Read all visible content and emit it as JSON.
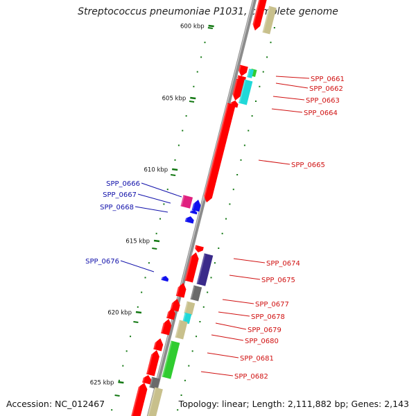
{
  "title": "Streptococcus pneumoniae P1031, complete genome",
  "accession_label": "Accession: NC_012467",
  "summary_label": "Topology: linear; Length: 2,111,882 bp; Genes: 2,143",
  "colors": {
    "backbone": "#8c8c8c",
    "ruler": "#117711",
    "gene_red": "#ff0000",
    "gene_tan": "#c8c08c",
    "gene_cyan": "#20d8d8",
    "gene_green": "#30cc30",
    "gene_magenta": "#e0207f",
    "gene_blue": "#1010ee",
    "gene_indigo": "#3a2a8a",
    "gene_gray": "#6a6a6a",
    "label_right": "#d01010",
    "label_left": "#1010aa"
  },
  "ruler_labels": [
    "600 kbp",
    "605 kbp",
    "610 kbp",
    "615 kbp",
    "620 kbp",
    "625 kbp"
  ],
  "right_genes": [
    "SPP_0661",
    "SPP_0662",
    "SPP_0663",
    "SPP_0664",
    "SPP_0665",
    "SPP_0674",
    "SPP_0675",
    "SPP_0677",
    "SPP_0678",
    "SPP_0679",
    "SPP_0680",
    "SPP_0681",
    "SPP_0682"
  ],
  "left_genes": [
    "SPP_0666",
    "SPP_0667",
    "SPP_0668",
    "SPP_0676"
  ]
}
